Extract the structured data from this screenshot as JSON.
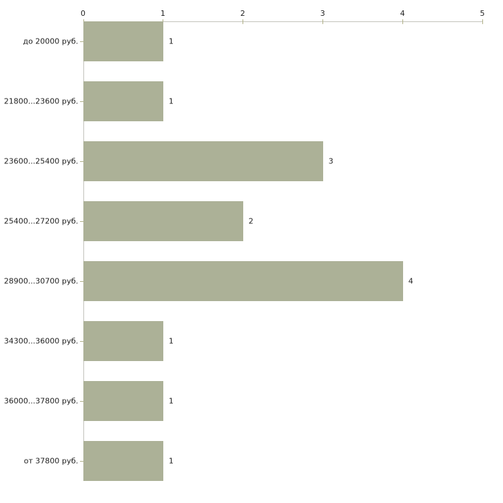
{
  "chart_data": {
    "type": "bar",
    "orientation": "horizontal",
    "title": "",
    "xlabel": "",
    "ylabel": "",
    "categories": [
      "до 20000 руб.",
      "21800...23600 руб.",
      "23600...25400 руб.",
      "25400...27200 руб.",
      "28900...30700 руб.",
      "34300...36000 руб.",
      "36000...37800 руб.",
      "от 37800 руб."
    ],
    "values": [
      1,
      1,
      3,
      2,
      4,
      1,
      1,
      1
    ],
    "value_labels": [
      "1",
      "1",
      "3",
      "2",
      "4",
      "1",
      "1",
      "1"
    ],
    "x_ticks": [
      "0",
      "1",
      "2",
      "3",
      "4",
      "5"
    ],
    "xlim": [
      0,
      5
    ],
    "axis_position": "top",
    "grid": false,
    "legend": false,
    "colors": {
      "bar_fill": "#acb197",
      "axis_line": "#c3c3bc",
      "tick_mark": "#b2b289",
      "text": "#1f1f1f"
    }
  }
}
